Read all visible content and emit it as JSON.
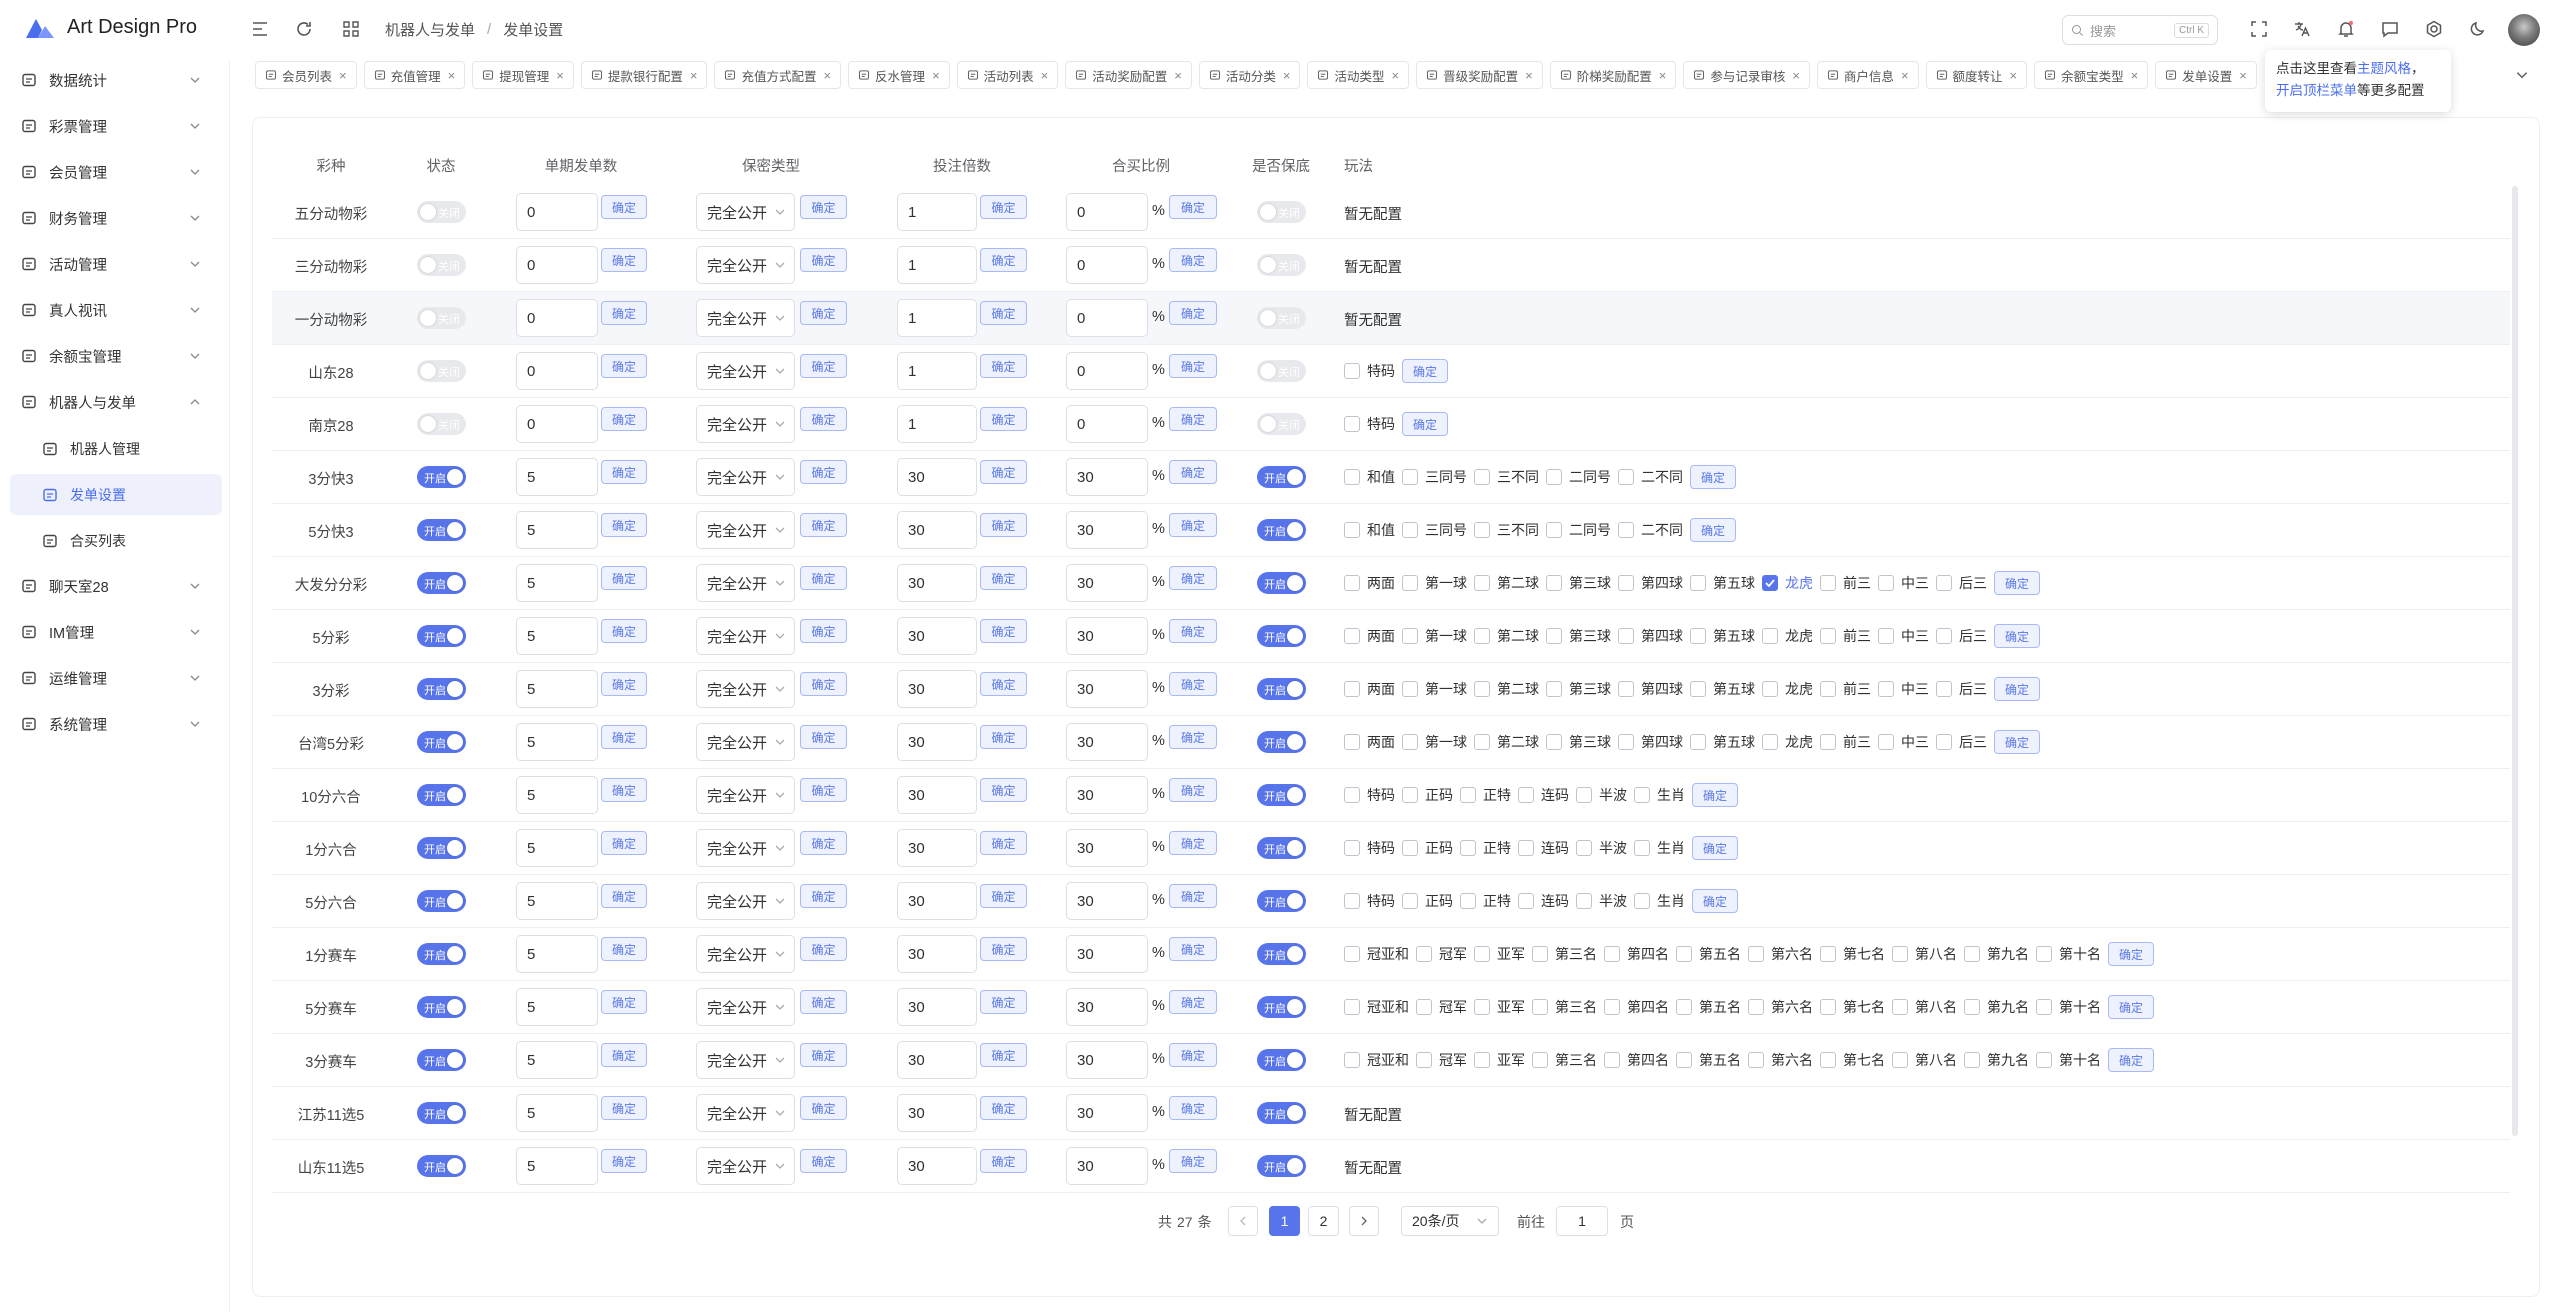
{
  "brand": "Art Design Pro",
  "breadcrumb": [
    "机器人与发单",
    "发单设置"
  ],
  "search": {
    "placeholder": "搜索",
    "shortcut": "Ctrl K"
  },
  "sidebar": [
    {
      "label": "数据统计"
    },
    {
      "label": "彩票管理"
    },
    {
      "label": "会员管理"
    },
    {
      "label": "财务管理"
    },
    {
      "label": "活动管理"
    },
    {
      "label": "真人视讯"
    },
    {
      "label": "余额宝管理"
    },
    {
      "label": "机器人与发单",
      "expanded": true,
      "children": [
        {
          "label": "机器人管理"
        },
        {
          "label": "发单设置",
          "active": true
        },
        {
          "label": "合买列表"
        }
      ]
    },
    {
      "label": "聊天室28"
    },
    {
      "label": "IM管理"
    },
    {
      "label": "运维管理"
    },
    {
      "label": "系统管理"
    }
  ],
  "tabs": [
    "会员列表",
    "充值管理",
    "提现管理",
    "提款银行配置",
    "充值方式配置",
    "反水管理",
    "活动列表",
    "活动奖励配置",
    "活动分类",
    "活动类型",
    "晋级奖励配置",
    "阶梯奖励配置",
    "参与记录审核",
    "商户信息",
    "额度转让",
    "余额宝类型",
    "发单设置"
  ],
  "tooltip": {
    "text_1": "点击这里查看",
    "link_1": "主题风格",
    "text_2": "，",
    "link_2": "开启顶栏菜单",
    "text_3": "等更多配置"
  },
  "labels": {
    "confirm": "确定",
    "on": "开启",
    "off": "关闭",
    "percent": "%",
    "none": "暂无配置"
  },
  "table": {
    "headers": [
      "彩种",
      "状态",
      "单期发单数",
      "保密类型",
      "投注倍数",
      "合买比例",
      "是否保底",
      "玩法"
    ],
    "play_sets": {
      "tema": [
        "特码"
      ],
      "k3": [
        "和值",
        "三同号",
        "三不同",
        "二同号",
        "二不同"
      ],
      "ssc": [
        "两面",
        "第一球",
        "第二球",
        "第三球",
        "第四球",
        "第五球",
        "龙虎",
        "前三",
        "中三",
        "后三"
      ],
      "lhc": [
        "特码",
        "正码",
        "正特",
        "连码",
        "半波",
        "生肖"
      ],
      "pk": [
        "冠亚和",
        "冠军",
        "亚军",
        "第三名",
        "第四名",
        "第五名",
        "第六名",
        "第七名",
        "第八名",
        "第九名",
        "第十名"
      ]
    },
    "rows": [
      {
        "name": "五分动物彩",
        "status": false,
        "count": 0,
        "secrecy": "完全公开",
        "multiple": 1,
        "ratio": 0,
        "guarantee": false,
        "play": null
      },
      {
        "name": "三分动物彩",
        "status": false,
        "count": 0,
        "secrecy": "完全公开",
        "multiple": 1,
        "ratio": 0,
        "guarantee": false,
        "play": null
      },
      {
        "name": "一分动物彩",
        "status": false,
        "count": 0,
        "secrecy": "完全公开",
        "multiple": 1,
        "ratio": 0,
        "guarantee": false,
        "play": null,
        "highlighted": true
      },
      {
        "name": "山东28",
        "status": false,
        "count": 0,
        "secrecy": "完全公开",
        "multiple": 1,
        "ratio": 0,
        "guarantee": false,
        "play": "tema"
      },
      {
        "name": "南京28",
        "status": false,
        "count": 0,
        "secrecy": "完全公开",
        "multiple": 1,
        "ratio": 0,
        "guarantee": false,
        "play": "tema"
      },
      {
        "name": "3分快3",
        "status": true,
        "count": 5,
        "secrecy": "完全公开",
        "multiple": 30,
        "ratio": 30,
        "guarantee": true,
        "play": "k3"
      },
      {
        "name": "5分快3",
        "status": true,
        "count": 5,
        "secrecy": "完全公开",
        "multiple": 30,
        "ratio": 30,
        "guarantee": true,
        "play": "k3"
      },
      {
        "name": "大发分分彩",
        "status": true,
        "count": 5,
        "secrecy": "完全公开",
        "multiple": 30,
        "ratio": 30,
        "guarantee": true,
        "play": "ssc",
        "checked": [
          6
        ]
      },
      {
        "name": "5分彩",
        "status": true,
        "count": 5,
        "secrecy": "完全公开",
        "multiple": 30,
        "ratio": 30,
        "guarantee": true,
        "play": "ssc"
      },
      {
        "name": "3分彩",
        "status": true,
        "count": 5,
        "secrecy": "完全公开",
        "multiple": 30,
        "ratio": 30,
        "guarantee": true,
        "play": "ssc"
      },
      {
        "name": "台湾5分彩",
        "status": true,
        "count": 5,
        "secrecy": "完全公开",
        "multiple": 30,
        "ratio": 30,
        "guarantee": true,
        "play": "ssc"
      },
      {
        "name": "10分六合",
        "status": true,
        "count": 5,
        "secrecy": "完全公开",
        "multiple": 30,
        "ratio": 30,
        "guarantee": true,
        "play": "lhc"
      },
      {
        "name": "1分六合",
        "status": true,
        "count": 5,
        "secrecy": "完全公开",
        "multiple": 30,
        "ratio": 30,
        "guarantee": true,
        "play": "lhc"
      },
      {
        "name": "5分六合",
        "status": true,
        "count": 5,
        "secrecy": "完全公开",
        "multiple": 30,
        "ratio": 30,
        "guarantee": true,
        "play": "lhc"
      },
      {
        "name": "1分赛车",
        "status": true,
        "count": 5,
        "secrecy": "完全公开",
        "multiple": 30,
        "ratio": 30,
        "guarantee": true,
        "play": "pk"
      },
      {
        "name": "5分赛车",
        "status": true,
        "count": 5,
        "secrecy": "完全公开",
        "multiple": 30,
        "ratio": 30,
        "guarantee": true,
        "play": "pk"
      },
      {
        "name": "3分赛车",
        "status": true,
        "count": 5,
        "secrecy": "完全公开",
        "multiple": 30,
        "ratio": 30,
        "guarantee": true,
        "play": "pk"
      },
      {
        "name": "江苏11选5",
        "status": true,
        "count": 5,
        "secrecy": "完全公开",
        "multiple": 30,
        "ratio": 30,
        "guarantee": true,
        "play": null
      },
      {
        "name": "山东11选5",
        "status": true,
        "count": 5,
        "secrecy": "完全公开",
        "multiple": 30,
        "ratio": 30,
        "guarantee": true,
        "play": null
      }
    ]
  },
  "pagination": {
    "total_prefix": "共",
    "total": 27,
    "total_suffix": "条",
    "pages": [
      1,
      2
    ],
    "current": 1,
    "page_size_label": "20条/页",
    "goto_prefix": "前往",
    "goto_value": 1,
    "goto_suffix": "页"
  }
}
